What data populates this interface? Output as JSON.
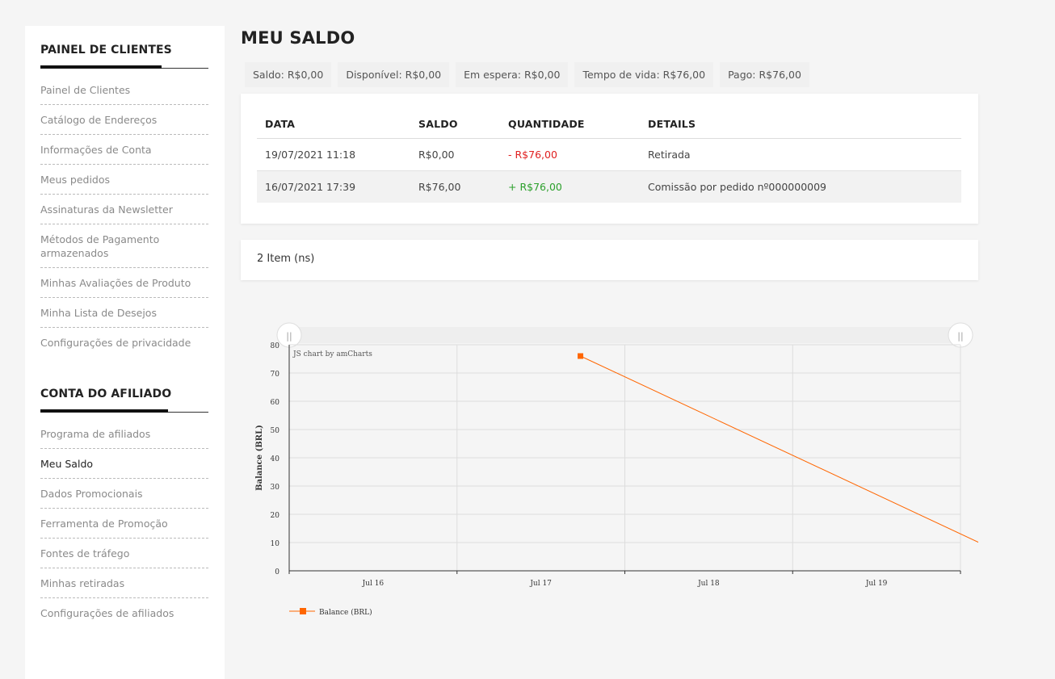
{
  "sidebar": {
    "section1_title": "PAINEL DE CLIENTES",
    "section1_items": [
      {
        "label": "Painel de Clientes"
      },
      {
        "label": "Catálogo de Endereços"
      },
      {
        "label": "Informações de Conta"
      },
      {
        "label": "Meus pedidos"
      },
      {
        "label": "Assinaturas da Newsletter"
      },
      {
        "label": "Métodos de Pagamento armazenados"
      },
      {
        "label": "Minhas Avaliações de Produto"
      },
      {
        "label": "Minha Lista de Desejos"
      },
      {
        "label": "Configurações de privacidade"
      }
    ],
    "section2_title": "CONTA DO AFILIADO",
    "section2_items": [
      {
        "label": "Programa de afiliados"
      },
      {
        "label": "Meu Saldo"
      },
      {
        "label": "Dados Promocionais"
      },
      {
        "label": "Ferramenta de Promoção"
      },
      {
        "label": "Fontes de tráfego"
      },
      {
        "label": "Minhas retiradas"
      },
      {
        "label": "Configurações de afiliados"
      }
    ]
  },
  "main": {
    "title": "MEU SALDO",
    "summary": {
      "saldo": "Saldo: R$0,00",
      "disponivel": "Disponível: R$0,00",
      "em_espera": "Em espera: R$0,00",
      "tempo_de_vida": "Tempo de vida: R$76,00",
      "pago": "Pago: R$76,00"
    },
    "table": {
      "headers": [
        "DATA",
        "SALDO",
        "QUANTIDADE",
        "DETAILS"
      ],
      "rows": [
        {
          "data": "19/07/2021 11:18",
          "saldo": "R$0,00",
          "quantidade": "- R$76,00",
          "details": "Retirada"
        },
        {
          "data": "16/07/2021 17:39",
          "saldo": "R$76,00",
          "quantidade": "+ R$76,00",
          "details": "Comissão por pedido nº000000009"
        }
      ]
    },
    "item_count": "2 Item (ns)"
  },
  "colors": {
    "series": "#ff6600",
    "negative": "#e02020",
    "positive": "#2ca02c"
  },
  "chart_data": {
    "type": "line",
    "credit": "JS chart by amCharts",
    "ylabel": "Balance (BRL)",
    "ylim": [
      0,
      80
    ],
    "yticks": [
      0,
      10,
      20,
      30,
      40,
      50,
      60,
      70,
      80
    ],
    "xticks": [
      "Jul 16",
      "Jul 17",
      "Jul 18",
      "Jul 19"
    ],
    "x_domain": [
      "2021-07-15",
      "2021-07-19"
    ],
    "series": [
      {
        "name": "Balance (BRL)",
        "points": [
          {
            "x": "2021-07-16 17:39",
            "y": 76
          },
          {
            "x": "2021-07-19 11:18",
            "y": 0
          }
        ]
      }
    ],
    "legend": "bottom-left",
    "grid": true
  }
}
